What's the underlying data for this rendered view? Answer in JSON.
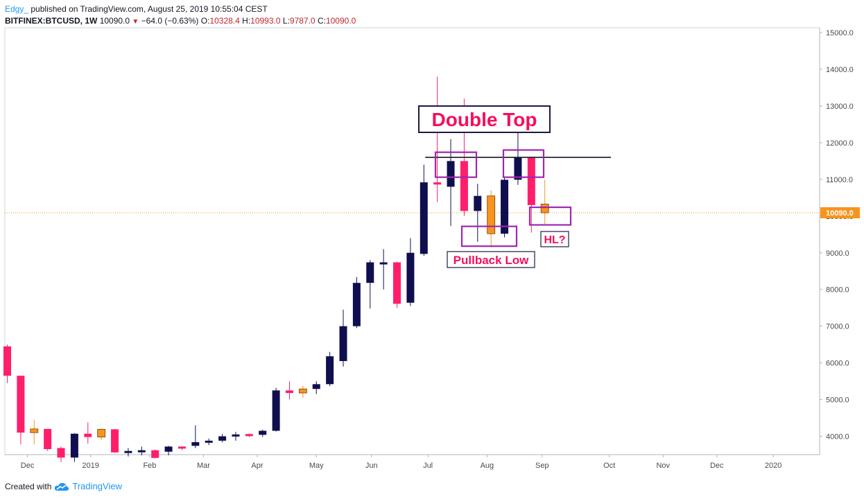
{
  "header": {
    "author": "Edgy_",
    "published": "published on TradingView.com, August 25, 2019 10:55:04 CEST",
    "symbol": "BITFINEX:BTCUSD, 1W",
    "last": "10090.0",
    "change": "−64.0 (−0.63%)",
    "o_label": "O:",
    "o_value": "10328.4",
    "h_label": "H:",
    "h_value": "10993.0",
    "l_label": "L:",
    "l_value": "9787.0",
    "c_label": "C:",
    "c_value": "10090.0"
  },
  "footer": {
    "created_with": "Created with",
    "brand": "TradingView",
    "logo_icon": "tradingview-cloud-icon"
  },
  "colors": {
    "bull": "#0f0f4f",
    "bear": "#ff1e6b",
    "doji": "#f7941d",
    "annotation_box": "#9c27b0",
    "annotation_text": "#f50f5a",
    "price_line": "#f7941d",
    "resistance": "#131722",
    "axis_text": "#4a4a4a"
  },
  "chart_data": {
    "type": "candlestick",
    "symbol": "BITFINEX:BTCUSD",
    "interval": "1W",
    "y_axis": {
      "ticks": [
        "4000.0",
        "5000.0",
        "6000.0",
        "7000.0",
        "8000.0",
        "9000.0",
        "10000.0",
        "11000.0",
        "12000.0",
        "13000.0",
        "14000.0",
        "15000.0"
      ],
      "range": [
        3460,
        15100
      ]
    },
    "x_axis": {
      "ticks": [
        {
          "label": "Dec",
          "week": 1.5
        },
        {
          "label": "2019",
          "week": 6.2
        },
        {
          "label": "Feb",
          "week": 10.6
        },
        {
          "label": "Mar",
          "week": 14.6
        },
        {
          "label": "Apr",
          "week": 18.6
        },
        {
          "label": "May",
          "week": 23.0
        },
        {
          "label": "Jun",
          "week": 27.1
        },
        {
          "label": "Jul",
          "week": 31.3
        },
        {
          "label": "Aug",
          "week": 35.7
        },
        {
          "label": "Sep",
          "week": 39.8
        },
        {
          "label": "Oct",
          "week": 44.8
        },
        {
          "label": "Nov",
          "week": 48.8
        },
        {
          "label": "Dec",
          "week": 52.8
        },
        {
          "label": "2020",
          "week": 57.0
        }
      ]
    },
    "candles": [
      {
        "o": 6450,
        "h": 6500,
        "l": 5450,
        "c": 5650
      },
      {
        "o": 5650,
        "h": 5650,
        "l": 3780,
        "c": 4100
      },
      {
        "o": 4100,
        "h": 4450,
        "l": 3780,
        "c": 4200
      },
      {
        "o": 4200,
        "h": 4200,
        "l": 3600,
        "c": 3650
      },
      {
        "o": 3680,
        "h": 3720,
        "l": 3300,
        "c": 3420
      },
      {
        "o": 3420,
        "h": 4080,
        "l": 3300,
        "c": 4070
      },
      {
        "o": 4070,
        "h": 4380,
        "l": 3800,
        "c": 3980
      },
      {
        "o": 3980,
        "h": 4200,
        "l": 3900,
        "c": 4190
      },
      {
        "o": 4190,
        "h": 4200,
        "l": 3550,
        "c": 3560
      },
      {
        "o": 3580,
        "h": 3680,
        "l": 3450,
        "c": 3600
      },
      {
        "o": 3600,
        "h": 3720,
        "l": 3480,
        "c": 3620
      },
      {
        "o": 3620,
        "h": 3640,
        "l": 3400,
        "c": 3410
      },
      {
        "o": 3580,
        "h": 3740,
        "l": 3480,
        "c": 3720
      },
      {
        "o": 3720,
        "h": 3720,
        "l": 3620,
        "c": 3690
      },
      {
        "o": 3740,
        "h": 4300,
        "l": 3680,
        "c": 3840
      },
      {
        "o": 3830,
        "h": 3940,
        "l": 3760,
        "c": 3880
      },
      {
        "o": 3880,
        "h": 4060,
        "l": 3840,
        "c": 4000
      },
      {
        "o": 4000,
        "h": 4120,
        "l": 3880,
        "c": 4050
      },
      {
        "o": 4060,
        "h": 4080,
        "l": 3980,
        "c": 4040
      },
      {
        "o": 4040,
        "h": 4180,
        "l": 3980,
        "c": 4150
      },
      {
        "o": 4150,
        "h": 5320,
        "l": 4130,
        "c": 5250
      },
      {
        "o": 5250,
        "h": 5500,
        "l": 5000,
        "c": 5180
      },
      {
        "o": 5180,
        "h": 5380,
        "l": 5050,
        "c": 5290
      },
      {
        "o": 5290,
        "h": 5500,
        "l": 5150,
        "c": 5420
      },
      {
        "o": 5420,
        "h": 6300,
        "l": 5370,
        "c": 6180
      },
      {
        "o": 6050,
        "h": 7450,
        "l": 5900,
        "c": 7000
      },
      {
        "o": 7000,
        "h": 8340,
        "l": 6950,
        "c": 8180
      },
      {
        "o": 8180,
        "h": 8800,
        "l": 7480,
        "c": 8740
      },
      {
        "o": 8720,
        "h": 9100,
        "l": 8000,
        "c": 8740
      },
      {
        "o": 8740,
        "h": 8760,
        "l": 7500,
        "c": 7610
      },
      {
        "o": 7640,
        "h": 9400,
        "l": 7550,
        "c": 9000
      },
      {
        "o": 8970,
        "h": 11400,
        "l": 8920,
        "c": 10920
      },
      {
        "o": 10920,
        "h": 13800,
        "l": 10380,
        "c": 10860
      },
      {
        "o": 10800,
        "h": 12100,
        "l": 9730,
        "c": 11500
      },
      {
        "o": 11500,
        "h": 13200,
        "l": 10000,
        "c": 10140
      },
      {
        "o": 10140,
        "h": 10880,
        "l": 9300,
        "c": 10550
      },
      {
        "o": 10550,
        "h": 10700,
        "l": 9150,
        "c": 9520
      },
      {
        "o": 9520,
        "h": 11060,
        "l": 9420,
        "c": 10990
      },
      {
        "o": 10990,
        "h": 12330,
        "l": 10850,
        "c": 11600
      },
      {
        "o": 11600,
        "h": 11620,
        "l": 9550,
        "c": 10300
      },
      {
        "o": 10328.4,
        "h": 10993,
        "l": 9787,
        "c": 10090
      }
    ],
    "current_price": "10090.0",
    "resistance_level": 11600
  },
  "annotations": {
    "double_top": "Double Top",
    "pullback_low": "Pullback Low",
    "hl": "HL?"
  }
}
